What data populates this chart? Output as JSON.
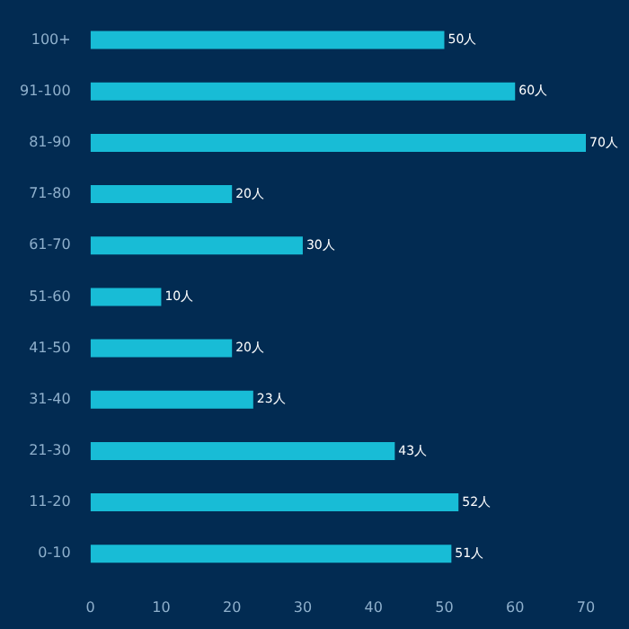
{
  "chart_data": {
    "type": "bar",
    "orientation": "horizontal",
    "categories": [
      "100+",
      "91-100",
      "81-90",
      "71-80",
      "61-70",
      "51-60",
      "41-50",
      "31-40",
      "21-30",
      "11-20",
      "0-10"
    ],
    "series": [
      {
        "color": "#18bcd6",
        "values": [
          50,
          60,
          70,
          20,
          30,
          10,
          20,
          23,
          43,
          52,
          51
        ],
        "value_labels": [
          "50人",
          "60人",
          "70人",
          "20人",
          "30人",
          "10人",
          "20人",
          "23人",
          "43人",
          "52人",
          "51人"
        ]
      }
    ],
    "xlim": [
      0,
      70
    ],
    "xticks": [
      0,
      10,
      20,
      30,
      40,
      50,
      60,
      70
    ],
    "grid": false,
    "legend": false
  }
}
